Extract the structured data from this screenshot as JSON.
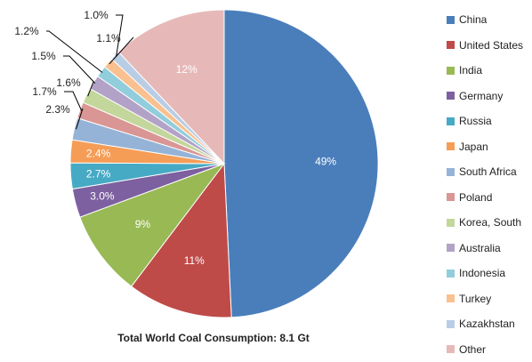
{
  "chart_data": {
    "type": "pie",
    "caption": "Total World Coal Consumption: 8.1 Gt",
    "slices": [
      {
        "name": "China",
        "value": 49,
        "label": "49%",
        "color": "#4a7ebb"
      },
      {
        "name": "United States",
        "value": 11,
        "label": "11%",
        "color": "#be4b48"
      },
      {
        "name": "India",
        "value": 9,
        "label": "9%",
        "color": "#98b954"
      },
      {
        "name": "Germany",
        "value": 3.0,
        "label": "3.0%",
        "color": "#7d60a0"
      },
      {
        "name": "Russia",
        "value": 2.7,
        "label": "2.7%",
        "color": "#46aac5"
      },
      {
        "name": "Japan",
        "value": 2.4,
        "label": "2.4%",
        "color": "#f59d56"
      },
      {
        "name": "South Africa",
        "value": 2.3,
        "label": "2.3%",
        "color": "#95b3d7"
      },
      {
        "name": "Poland",
        "value": 1.7,
        "label": "1.7%",
        "color": "#d99694"
      },
      {
        "name": "Korea, South",
        "value": 1.6,
        "label": "1.6%",
        "color": "#c3d69b"
      },
      {
        "name": "Australia",
        "value": 1.5,
        "label": "1.5%",
        "color": "#b3a2c7"
      },
      {
        "name": "Indonesia",
        "value": 1.2,
        "label": "1.2%",
        "color": "#92cddc"
      },
      {
        "name": "Turkey",
        "value": 1.1,
        "label": "1.1%",
        "color": "#fac090"
      },
      {
        "name": "Kazakhstan",
        "value": 1.0,
        "label": "1.0%",
        "color": "#b9cde5"
      },
      {
        "name": "Other",
        "value": 12,
        "label": "12%",
        "color": "#e6b9b8"
      }
    ],
    "start_angle_deg": 0,
    "direction": "clockwise",
    "legend_position": "right"
  }
}
